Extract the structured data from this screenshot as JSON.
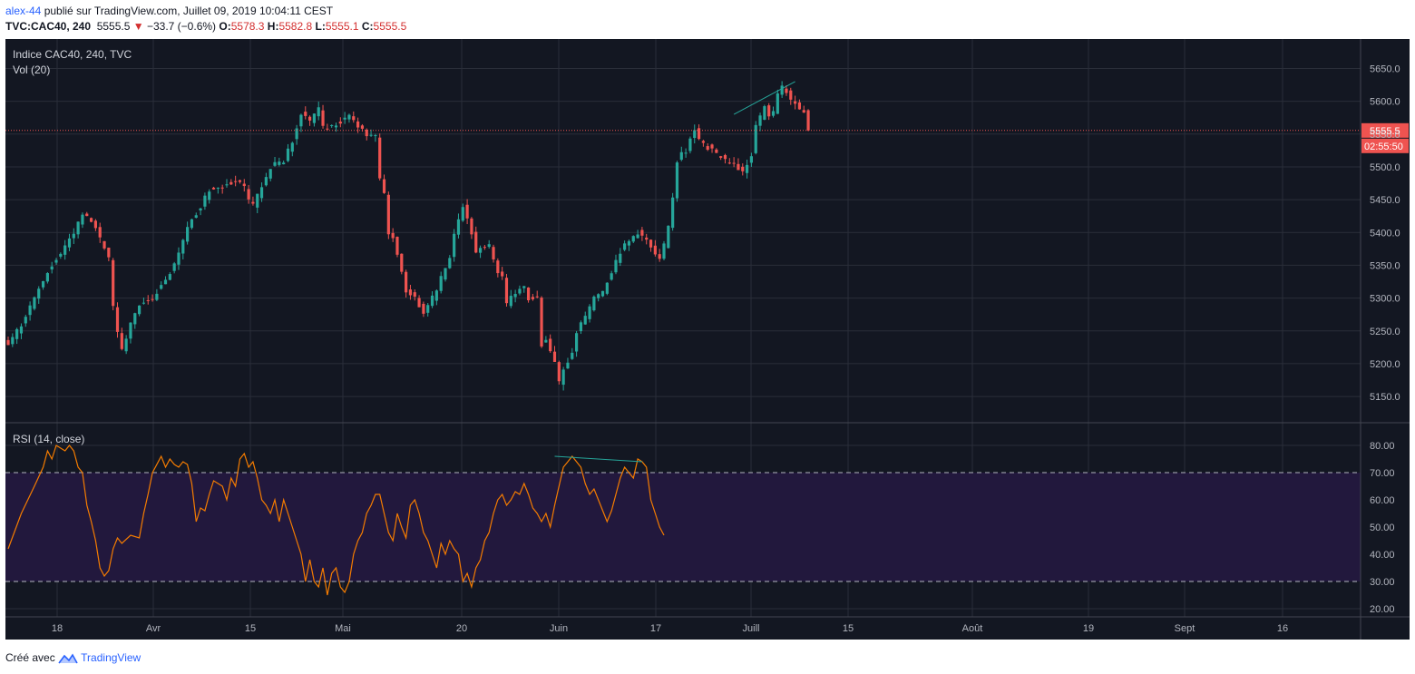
{
  "header": {
    "author": "alex-44",
    "published_text": "publié sur TradingView.com, Juillet 09, 2019 10:04:11 CEST",
    "symbol": "TVC:CAC40, 240",
    "last": "5555.5",
    "change": "−33.7 (−0.6%)",
    "open_label": "O:",
    "open": "5578.3",
    "high_label": "H:",
    "high": "5582.8",
    "low_label": "L:",
    "low": "5555.1",
    "close_label": "C:",
    "close": "5555.5"
  },
  "legend": {
    "main": "Indice CAC40, 240, TVC",
    "vol": "Vol (20)",
    "rsi": "RSI (14, close)"
  },
  "price_axis": {
    "ticks": [
      "5650.0",
      "5600.0",
      "5550.0",
      "5500.0",
      "5450.0",
      "5400.0",
      "5350.0",
      "5300.0",
      "5250.0",
      "5200.0",
      "5150.0"
    ],
    "last_label": "5555.5",
    "countdown": "02:55:50"
  },
  "rsi_axis": {
    "ticks": [
      "80.00",
      "70.00",
      "60.00",
      "50.00",
      "40.00",
      "30.00",
      "20.00"
    ]
  },
  "time_axis": {
    "ticks": [
      "18",
      "Avr",
      "15",
      "Mai",
      "20",
      "Juin",
      "17",
      "Juill",
      "15",
      "Août",
      "19",
      "Sept",
      "16"
    ]
  },
  "footer": {
    "made_with": "Créé avec",
    "brand": "TradingView"
  },
  "colors": {
    "background": "#131722",
    "grid": "#2a2e39",
    "up": "#26a69a",
    "down": "#ef5350",
    "rsi_line": "#f57c00",
    "rsi_band": "#22183d",
    "trendline": "#26a69a",
    "last_price": "#ef5350"
  },
  "chart_data": [
    {
      "type": "candlestick",
      "title": "Indice CAC40, 240, TVC",
      "x_ticks": [
        "18",
        "Avr",
        "15",
        "Mai",
        "20",
        "Juin",
        "17",
        "Juill",
        "15",
        "Août",
        "19",
        "Sept",
        "16"
      ],
      "ylim": [
        5110,
        5670
      ],
      "last_price": 5555.5,
      "close_path": [
        [
          0,
          5230
        ],
        [
          3,
          5260
        ],
        [
          6,
          5300
        ],
        [
          9,
          5340
        ],
        [
          12,
          5370
        ],
        [
          15,
          5400
        ],
        [
          17,
          5430
        ],
        [
          19,
          5420
        ],
        [
          21,
          5390
        ],
        [
          23,
          5360
        ],
        [
          24,
          5290
        ],
        [
          25,
          5250
        ],
        [
          26,
          5220
        ],
        [
          28,
          5260
        ],
        [
          30,
          5290
        ],
        [
          33,
          5300
        ],
        [
          36,
          5330
        ],
        [
          38,
          5350
        ],
        [
          40,
          5390
        ],
        [
          42,
          5420
        ],
        [
          44,
          5440
        ],
        [
          46,
          5465
        ],
        [
          49,
          5470
        ],
        [
          52,
          5480
        ],
        [
          54,
          5470
        ],
        [
          55,
          5450
        ],
        [
          56,
          5440
        ],
        [
          58,
          5470
        ],
        [
          60,
          5500
        ],
        [
          63,
          5510
        ],
        [
          65,
          5540
        ],
        [
          67,
          5580
        ],
        [
          69,
          5570
        ],
        [
          71,
          5590
        ],
        [
          72,
          5560
        ],
        [
          74,
          5560
        ],
        [
          76,
          5570
        ],
        [
          78,
          5580
        ],
        [
          80,
          5560
        ],
        [
          82,
          5550
        ],
        [
          84,
          5545
        ],
        [
          85,
          5480
        ],
        [
          86,
          5460
        ],
        [
          87,
          5400
        ],
        [
          88,
          5390
        ],
        [
          89,
          5370
        ],
        [
          90,
          5340
        ],
        [
          91,
          5310
        ],
        [
          93,
          5300
        ],
        [
          95,
          5280
        ],
        [
          97,
          5300
        ],
        [
          99,
          5330
        ],
        [
          101,
          5360
        ],
        [
          102,
          5400
        ],
        [
          103,
          5420
        ],
        [
          104,
          5440
        ],
        [
          106,
          5400
        ],
        [
          107,
          5370
        ],
        [
          108,
          5380
        ],
        [
          110,
          5380
        ],
        [
          111,
          5360
        ],
        [
          112,
          5340
        ],
        [
          113,
          5330
        ],
        [
          114,
          5290
        ],
        [
          116,
          5310
        ],
        [
          118,
          5320
        ],
        [
          119,
          5300
        ],
        [
          120,
          5300
        ],
        [
          121,
          5300
        ],
        [
          122,
          5230
        ],
        [
          123,
          5240
        ],
        [
          124,
          5220
        ],
        [
          125,
          5200
        ],
        [
          126,
          5170
        ],
        [
          127,
          5190
        ],
        [
          129,
          5220
        ],
        [
          130,
          5250
        ],
        [
          132,
          5270
        ],
        [
          134,
          5300
        ],
        [
          136,
          5310
        ],
        [
          138,
          5340
        ],
        [
          140,
          5370
        ],
        [
          142,
          5390
        ],
        [
          144,
          5400
        ],
        [
          146,
          5390
        ],
        [
          148,
          5370
        ],
        [
          149,
          5360
        ],
        [
          150,
          5380
        ],
        [
          151,
          5410
        ],
        [
          152,
          5450
        ],
        [
          153,
          5510
        ],
        [
          154,
          5520
        ],
        [
          155,
          5520
        ],
        [
          156,
          5540
        ],
        [
          157,
          5560
        ],
        [
          158,
          5540
        ],
        [
          160,
          5530
        ],
        [
          162,
          5520
        ],
        [
          164,
          5510
        ],
        [
          166,
          5505
        ],
        [
          168,
          5490
        ],
        [
          170,
          5520
        ],
        [
          171,
          5560
        ],
        [
          173,
          5590
        ],
        [
          174,
          5580
        ],
        [
          175,
          5585
        ],
        [
          176,
          5610
        ],
        [
          177,
          5620
        ],
        [
          178,
          5615
        ],
        [
          179,
          5600
        ],
        [
          181,
          5590
        ],
        [
          182,
          5585
        ],
        [
          183,
          5555.5
        ]
      ],
      "trendline": [
        [
          166,
          5580
        ],
        [
          180,
          5630
        ]
      ]
    },
    {
      "type": "line",
      "title": "RSI (14, close)",
      "ylim": [
        17,
        85
      ],
      "bands": [
        30,
        70
      ],
      "rsi_path": [
        [
          0,
          42
        ],
        [
          3,
          55
        ],
        [
          6,
          65
        ],
        [
          8,
          72
        ],
        [
          9,
          78
        ],
        [
          10,
          75
        ],
        [
          11,
          80
        ],
        [
          13,
          78
        ],
        [
          14,
          80
        ],
        [
          15,
          78
        ],
        [
          16,
          72
        ],
        [
          17,
          70
        ],
        [
          18,
          58
        ],
        [
          19,
          52
        ],
        [
          20,
          45
        ],
        [
          21,
          35
        ],
        [
          22,
          32
        ],
        [
          23,
          34
        ],
        [
          24,
          42
        ],
        [
          25,
          46
        ],
        [
          26,
          44
        ],
        [
          28,
          47
        ],
        [
          30,
          46
        ],
        [
          31,
          55
        ],
        [
          32,
          62
        ],
        [
          33,
          70
        ],
        [
          35,
          76
        ],
        [
          36,
          72
        ],
        [
          37,
          75
        ],
        [
          38,
          73
        ],
        [
          39,
          72
        ],
        [
          40,
          74
        ],
        [
          41,
          73
        ],
        [
          42,
          66
        ],
        [
          43,
          52
        ],
        [
          44,
          57
        ],
        [
          45,
          56
        ],
        [
          46,
          62
        ],
        [
          47,
          67
        ],
        [
          48,
          66
        ],
        [
          49,
          65
        ],
        [
          50,
          60
        ],
        [
          51,
          68
        ],
        [
          52,
          65
        ],
        [
          53,
          75
        ],
        [
          54,
          77
        ],
        [
          55,
          72
        ],
        [
          56,
          74
        ],
        [
          57,
          68
        ],
        [
          58,
          60
        ],
        [
          59,
          58
        ],
        [
          60,
          55
        ],
        [
          61,
          60
        ],
        [
          62,
          52
        ],
        [
          63,
          60
        ],
        [
          64,
          55
        ],
        [
          65,
          50
        ],
        [
          66,
          45
        ],
        [
          67,
          40
        ],
        [
          68,
          30
        ],
        [
          69,
          38
        ],
        [
          70,
          30
        ],
        [
          71,
          28
        ],
        [
          72,
          35
        ],
        [
          73,
          25
        ],
        [
          74,
          33
        ],
        [
          75,
          35
        ],
        [
          76,
          28
        ],
        [
          77,
          26
        ],
        [
          78,
          30
        ],
        [
          79,
          40
        ],
        [
          80,
          45
        ],
        [
          81,
          48
        ],
        [
          82,
          55
        ],
        [
          83,
          58
        ],
        [
          84,
          62
        ],
        [
          85,
          62
        ],
        [
          86,
          55
        ],
        [
          87,
          48
        ],
        [
          88,
          45
        ],
        [
          89,
          55
        ],
        [
          90,
          50
        ],
        [
          91,
          46
        ],
        [
          92,
          58
        ],
        [
          93,
          60
        ],
        [
          94,
          55
        ],
        [
          95,
          48
        ],
        [
          96,
          45
        ],
        [
          97,
          40
        ],
        [
          98,
          35
        ],
        [
          99,
          44
        ],
        [
          100,
          40
        ],
        [
          101,
          45
        ],
        [
          102,
          42
        ],
        [
          103,
          40
        ],
        [
          104,
          30
        ],
        [
          105,
          33
        ],
        [
          106,
          28
        ],
        [
          107,
          35
        ],
        [
          108,
          38
        ],
        [
          109,
          45
        ],
        [
          110,
          48
        ],
        [
          111,
          55
        ],
        [
          112,
          60
        ],
        [
          113,
          62
        ],
        [
          114,
          58
        ],
        [
          115,
          60
        ],
        [
          116,
          63
        ],
        [
          117,
          62
        ],
        [
          118,
          66
        ],
        [
          119,
          62
        ],
        [
          120,
          57
        ],
        [
          121,
          55
        ],
        [
          122,
          52
        ],
        [
          123,
          55
        ],
        [
          124,
          50
        ],
        [
          125,
          58
        ],
        [
          126,
          65
        ],
        [
          127,
          72
        ],
        [
          128,
          74
        ],
        [
          129,
          76
        ],
        [
          130,
          74
        ],
        [
          131,
          72
        ],
        [
          132,
          66
        ],
        [
          133,
          62
        ],
        [
          134,
          64
        ],
        [
          135,
          60
        ],
        [
          136,
          56
        ],
        [
          137,
          52
        ],
        [
          138,
          56
        ],
        [
          139,
          62
        ],
        [
          140,
          68
        ],
        [
          141,
          72
        ],
        [
          142,
          70
        ],
        [
          143,
          68
        ],
        [
          144,
          75
        ],
        [
          145,
          74
        ],
        [
          146,
          72
        ],
        [
          147,
          60
        ],
        [
          148,
          55
        ],
        [
          149,
          50
        ],
        [
          150,
          47
        ]
      ],
      "trendline": [
        [
          125,
          76
        ],
        [
          145,
          74
        ]
      ]
    }
  ]
}
